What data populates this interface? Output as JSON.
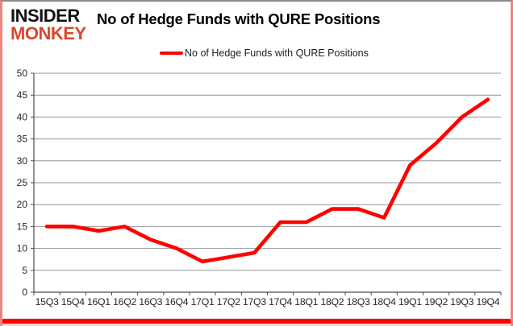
{
  "logo": {
    "line1": "INSIDER",
    "line2": "MONKEY"
  },
  "header": {
    "title": "No of Hedge Funds with QURE Positions"
  },
  "legend": {
    "label": "No of Hedge Funds with QURE Positions"
  },
  "colors": {
    "series_red": "#fe0100",
    "logo_red": "#d8492b",
    "gridline_gray": "#969696",
    "axis_gray": "#4d4d4d",
    "tick_label": "#262626",
    "border_pink": "#ef837c",
    "bottom_bar_red": "#fb0300"
  },
  "chart_data": {
    "type": "line",
    "title": "No of Hedge Funds with QURE Positions",
    "series": [
      {
        "name": "No of Hedge Funds with QURE Positions",
        "values": [
          15,
          15,
          14,
          15,
          12,
          10,
          7,
          8,
          9,
          16,
          16,
          19,
          19,
          17,
          29,
          34,
          40,
          44
        ]
      }
    ],
    "categories": [
      "15Q3",
      "15Q4",
      "16Q1",
      "16Q2",
      "16Q3",
      "16Q4",
      "17Q1",
      "17Q2",
      "17Q3",
      "17Q4",
      "18Q1",
      "18Q2",
      "18Q3",
      "18Q4",
      "19Q1",
      "19Q2",
      "19Q3",
      "19Q4"
    ],
    "xlabel": "",
    "ylabel": "",
    "ylim": [
      0,
      50
    ],
    "yticks": [
      0,
      5,
      10,
      15,
      20,
      25,
      30,
      35,
      40,
      45,
      50
    ],
    "grid": "horizontal",
    "legend_position": "top-center",
    "line_color": "#fe0100",
    "line_width": 4.6
  }
}
